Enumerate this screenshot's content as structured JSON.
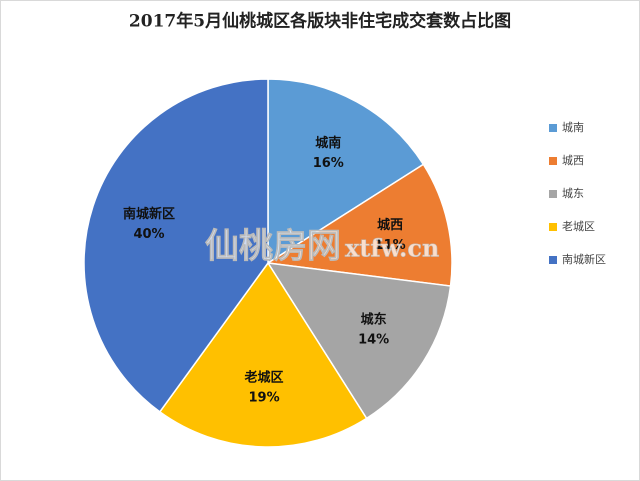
{
  "chart_data": {
    "type": "pie",
    "title": "2017年5月仙桃城区各版块非住宅成交套数占比图",
    "categories": [
      "城南",
      "城西",
      "城东",
      "老城区",
      "南城新区"
    ],
    "values": [
      16,
      11,
      14,
      19,
      40
    ],
    "value_labels": [
      "16%",
      "11%",
      "14%",
      "19%",
      "40%"
    ],
    "colors": [
      "#5b9bd5",
      "#ed7d31",
      "#a5a5a5",
      "#ffc000",
      "#4472c4"
    ],
    "legend": "right",
    "watermark": [
      "仙桃房网",
      "xtfw.cn"
    ]
  }
}
